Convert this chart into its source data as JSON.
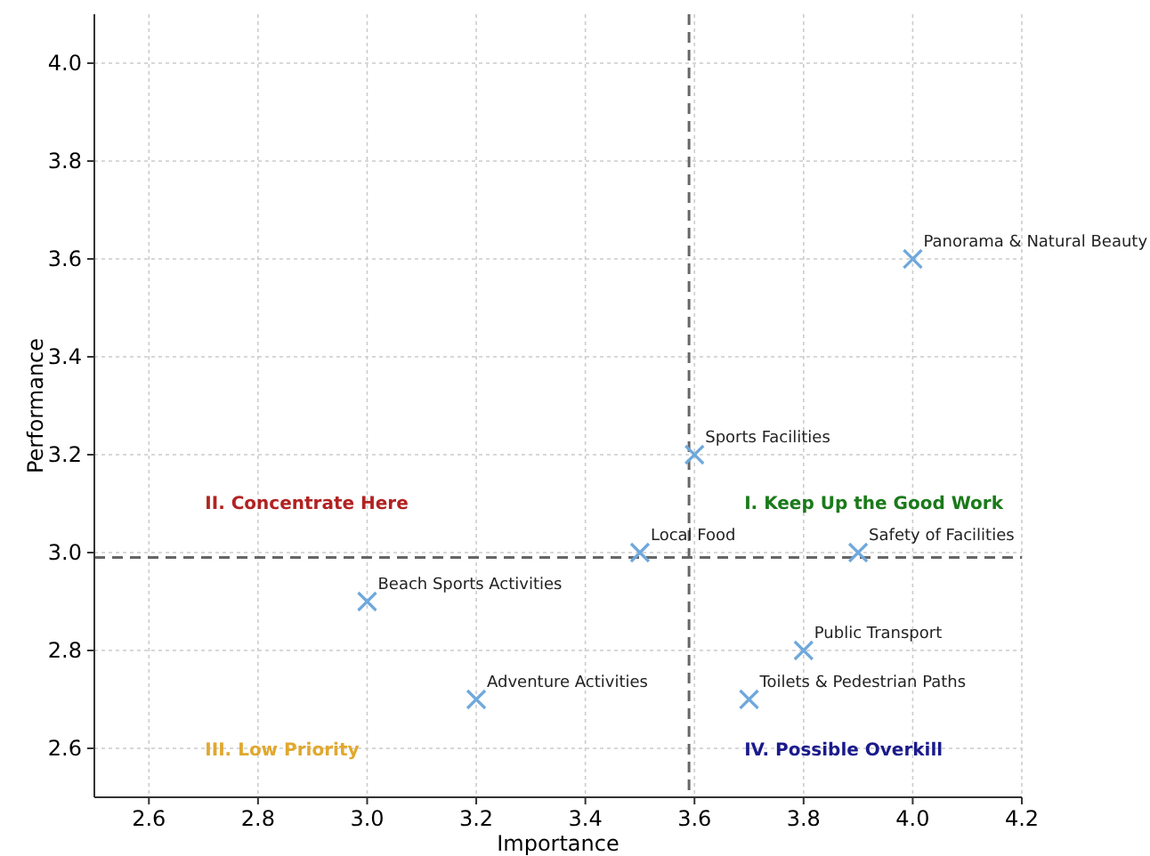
{
  "chart_data": {
    "type": "scatter",
    "xlabel": "Importance",
    "ylabel": "Performance",
    "x": [
      4.0,
      3.6,
      3.5,
      3.9,
      3.0,
      3.8,
      3.2,
      3.7
    ],
    "series": [
      {
        "color": "#6fa8dc",
        "values": [
          3.6,
          3.2,
          3.0,
          3.0,
          2.9,
          2.8,
          2.7,
          2.7
        ]
      }
    ],
    "marker": "cross",
    "grid": true,
    "xlim": [
      2.5,
      4.2
    ],
    "xticks": [
      2.6,
      2.8,
      {
        "value": 3,
        "label": "3.0"
      },
      3.2,
      3.4,
      3.6,
      3.8,
      {
        "value": 4,
        "label": "4.0"
      },
      4.2
    ],
    "ylim": [
      2.5,
      4.1
    ],
    "yticks": [
      2.6,
      2.8,
      {
        "value": 3,
        "label": "3.0"
      },
      3.2,
      3.4,
      3.6,
      3.8,
      {
        "value": 4,
        "label": "4.0"
      }
    ],
    "ref_lines": [
      {
        "axis": "x",
        "value": 3.59,
        "color": "#666666",
        "line_style": "dashed"
      },
      {
        "axis": "y",
        "value": 2.99,
        "color": "#666666",
        "line_style": "dashed"
      }
    ],
    "annotations": [
      {
        "text": "Panorama & Natural Beauty",
        "x": 4.0,
        "y": 3.6
      },
      {
        "text": "Sports Facilities",
        "x": 3.6,
        "y": 3.2
      },
      {
        "text": "Local Food",
        "x": 3.5,
        "y": 3.0
      },
      {
        "text": "Safety of Facilities",
        "x": 3.9,
        "y": 3.0
      },
      {
        "text": "Beach Sports Activities",
        "x": 3.0,
        "y": 2.9
      },
      {
        "text": "Public Transport",
        "x": 3.8,
        "y": 2.8
      },
      {
        "text": "Adventure Activities",
        "x": 3.2,
        "y": 2.7
      },
      {
        "text": "Toilets & Pedestrian Paths",
        "x": 3.7,
        "y": 2.7
      },
      "II. Concentrate Here",
      "I. Keep Up the Good Work",
      "III. Low Priority",
      "IV. Possible Overkill"
    ]
  }
}
